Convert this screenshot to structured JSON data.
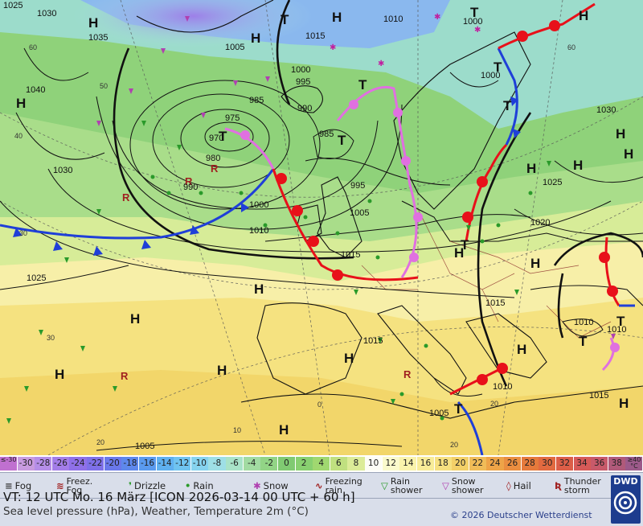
{
  "pressure_labels": [
    "1025",
    "1030",
    "1035",
    "1005",
    "1000",
    "1015",
    "1010",
    "1000",
    "995",
    "985",
    "990",
    "975",
    "970",
    "980",
    "990",
    "985",
    "995",
    "1000",
    "1010",
    "1005",
    "1030",
    "1040",
    "1030",
    "1025",
    "1020",
    "1015",
    "1010",
    "1010",
    "1015",
    "1010",
    "1005",
    "1015",
    "1025",
    "1015",
    "1000",
    "1005"
  ],
  "highs": [
    "H",
    "H",
    "H",
    "H",
    "H",
    "H",
    "H",
    "H",
    "H",
    "H",
    "H",
    "H",
    "H",
    "H",
    "H",
    "H",
    "H",
    "H",
    "H"
  ],
  "lows": [
    "T",
    "T",
    "T",
    "T",
    "T",
    "T",
    "T",
    "T",
    "T",
    "T",
    "T"
  ],
  "temp_labels": [
    "60",
    "50",
    "40",
    "30",
    "60",
    "30",
    "20",
    "10",
    "20",
    "0",
    "20"
  ],
  "scale": {
    "values": [
      "≤-30",
      "-30",
      "-28",
      "-26",
      "-24",
      "-22",
      "-20",
      "-18",
      "-16",
      "-14",
      "-12",
      "-10",
      "-8",
      "-6",
      "-4",
      "-2",
      "0",
      "2",
      "4",
      "6",
      "8",
      "10",
      "12",
      "14",
      "16",
      "18",
      "20",
      "22",
      "24",
      "26",
      "28",
      "30",
      "32",
      "34",
      "36",
      "38",
      "≥40 °C"
    ],
    "colors": [
      "#c070d0",
      "#c89be0",
      "#b58ee8",
      "#a37de8",
      "#8f70e8",
      "#7e70e8",
      "#6a78ea",
      "#5e88ec",
      "#5a9aee",
      "#5fb0ef",
      "#6fc3f0",
      "#86d3ef",
      "#9edfe6",
      "#a9e3c8",
      "#a2dba2",
      "#92d486",
      "#80ca72",
      "#88d070",
      "#a0d870",
      "#c0e080",
      "#dcec98",
      "#fdfdf5",
      "#fafacc",
      "#f9f3ac",
      "#f8ec98",
      "#f6e080",
      "#f3d068",
      "#f0bc58",
      "#eea448",
      "#ea8e40",
      "#e67a3c",
      "#e26a40",
      "#dc5e48",
      "#d65a58",
      "#c85a6a",
      "#b05a7a",
      "#9c5a8a"
    ]
  },
  "legend": {
    "fog": "Fog",
    "freez_fog_1": "Freez.",
    "freez_fog_2": "Fog",
    "drizzle": "Drizzle",
    "rain": "Rain",
    "snow": "Snow",
    "freezing_rain_1": "Freezing",
    "freezing_rain_2": "rain",
    "rain_shower_1": "Rain",
    "rain_shower_2": "shower",
    "snow_shower_1": "Snow",
    "snow_shower_2": "shower",
    "hail": "Hail",
    "thunderstorm_1": "Thunder",
    "thunderstorm_2": "storm"
  },
  "valid_time": "VT: 12 UTC Mo.   16 März [ICON 2026-03-14  00 UTC + 60 h]",
  "subtitle": "Sea level pressure (hPa), Weather, Temperature 2m (°C)",
  "copyright": "© 2026 Deutscher Wetterdienst",
  "logo_text": "DWD",
  "colors": {
    "cold_front": "#1f3fd8",
    "warm_front": "#e8101a",
    "occlusion": "#e070e0",
    "land": "#7a1f1f"
  }
}
